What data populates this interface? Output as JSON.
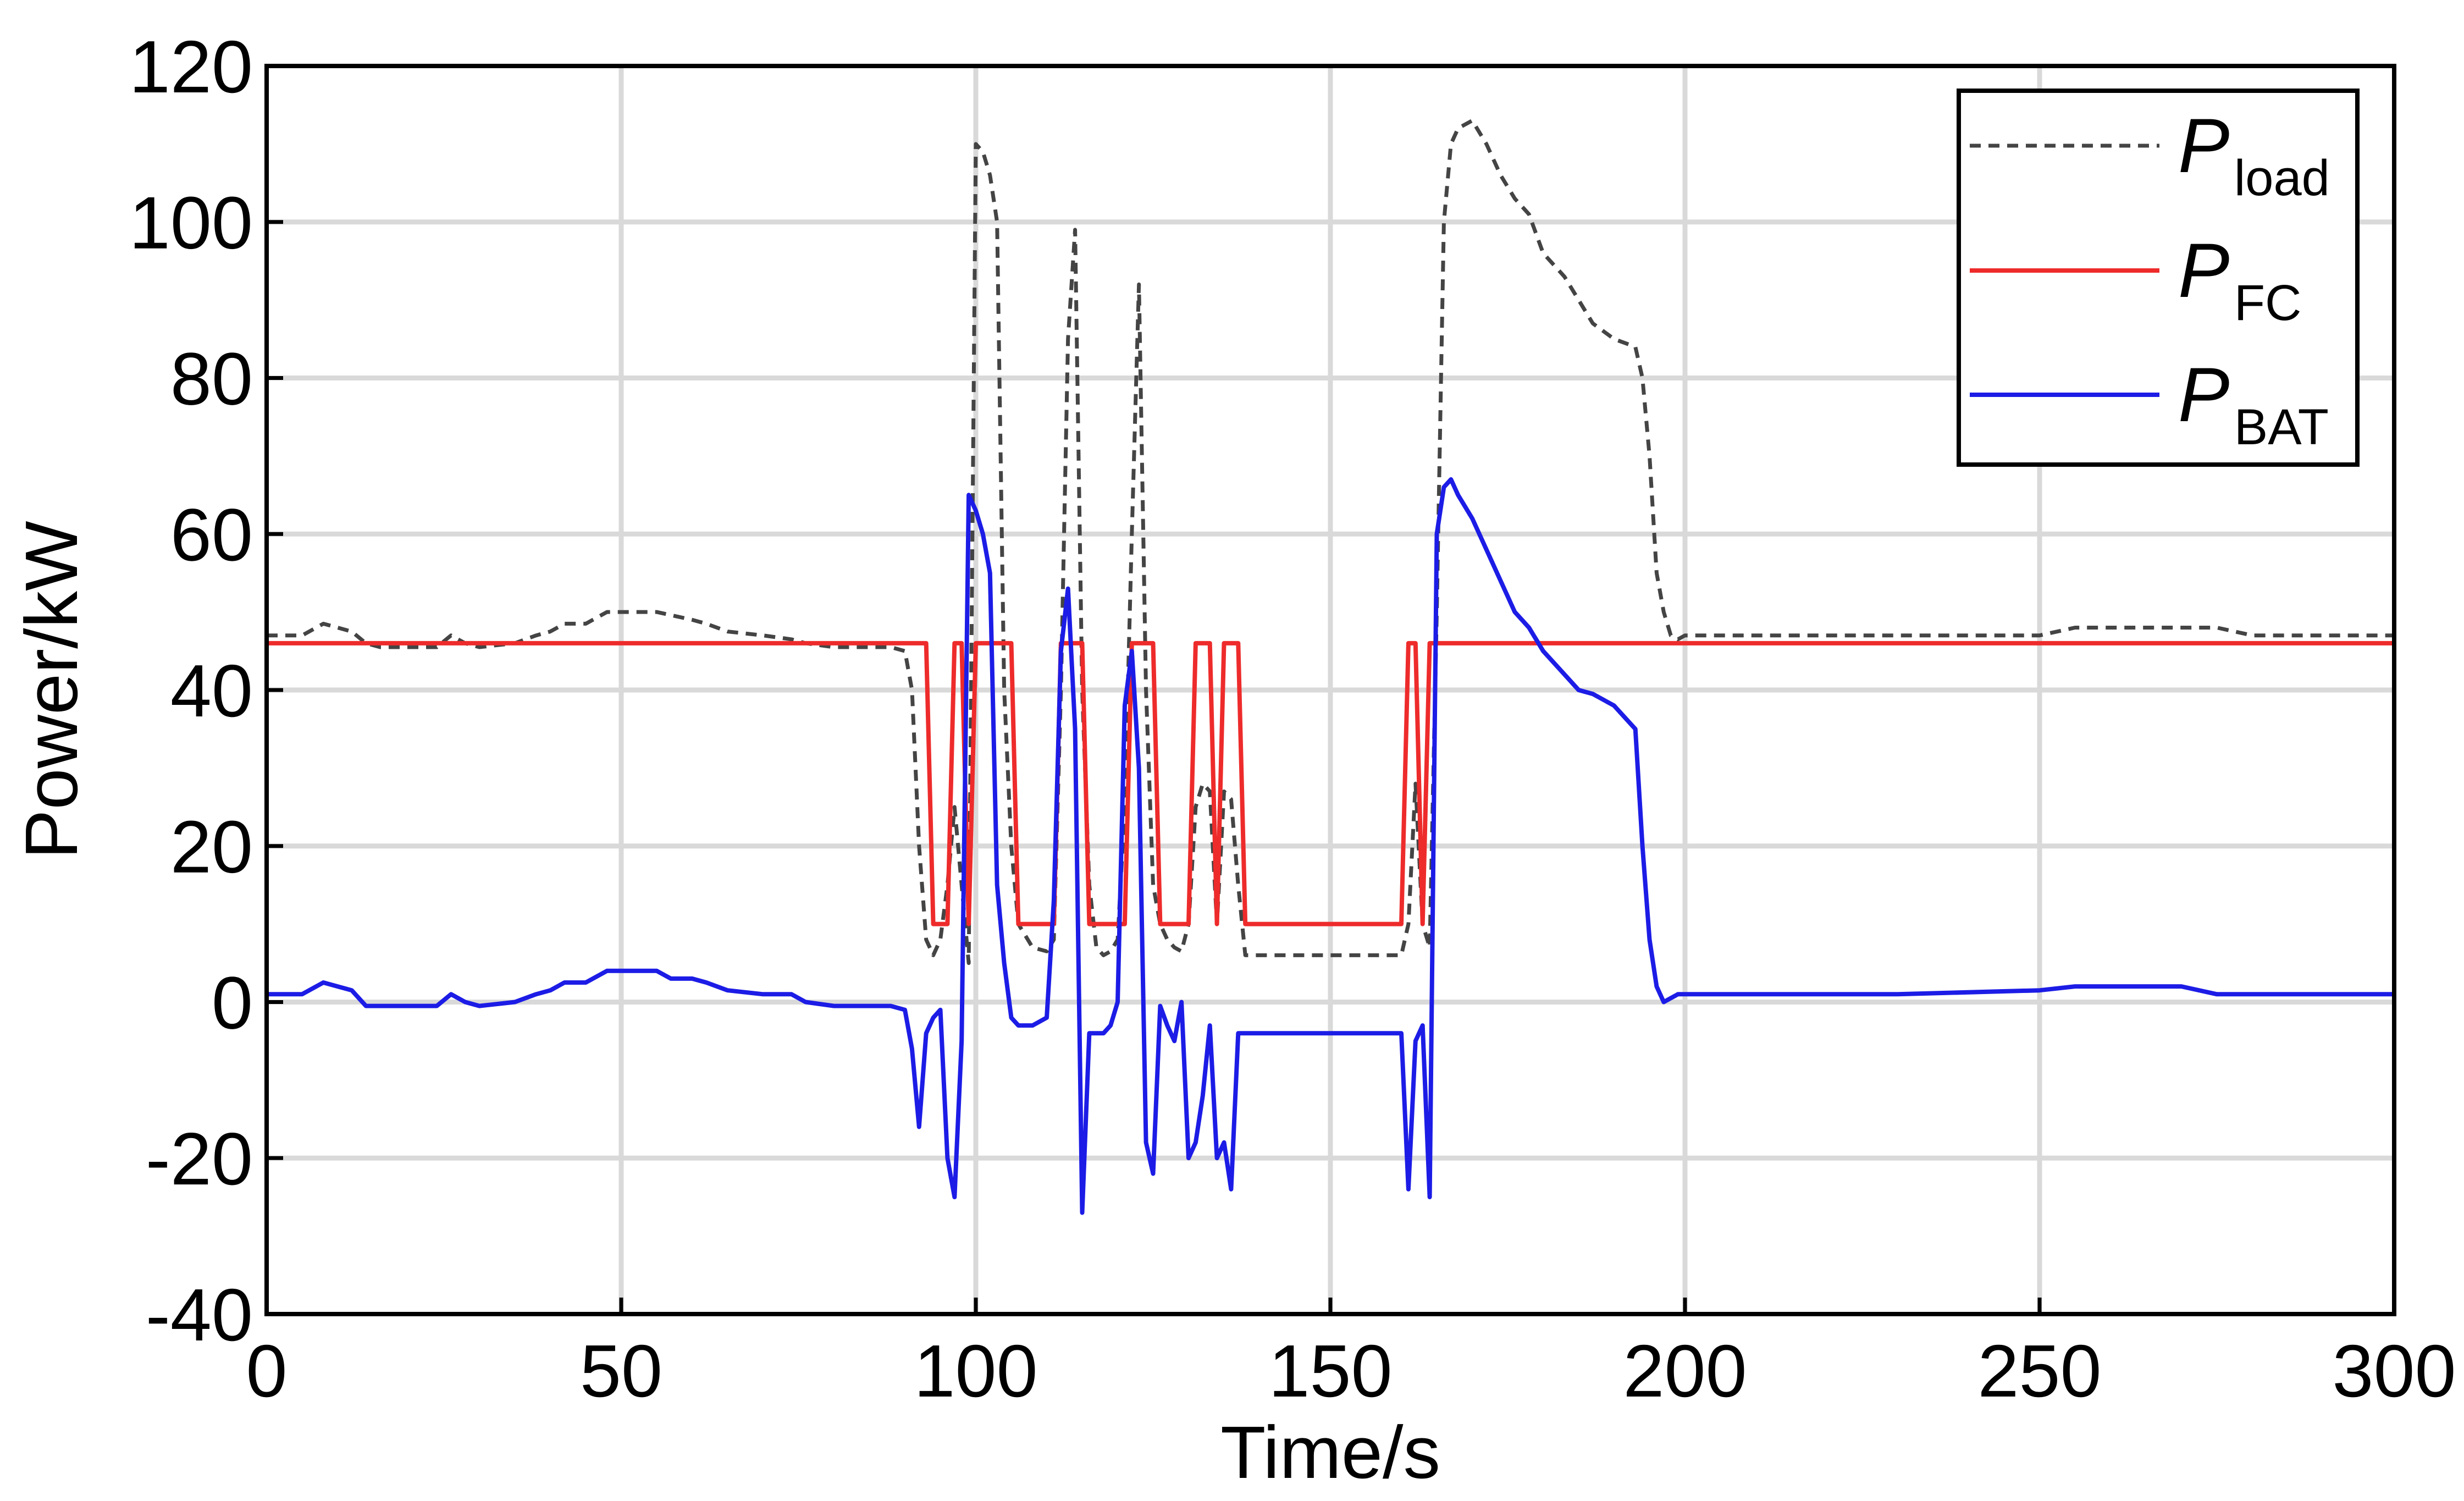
{
  "chart_data": {
    "type": "line",
    "title": "",
    "xlabel": "Time/s",
    "ylabel": "Power/kW",
    "xlim": [
      0,
      300
    ],
    "ylim": [
      -40,
      120
    ],
    "xticks": [
      0,
      50,
      100,
      150,
      200,
      250,
      300
    ],
    "yticks": [
      -40,
      -20,
      0,
      20,
      40,
      60,
      80,
      100,
      120
    ],
    "xtick_labels": [
      "0",
      "50",
      "100",
      "150",
      "200",
      "250",
      "300"
    ],
    "ytick_labels": [
      "-40",
      "-20",
      "0",
      "20",
      "40",
      "60",
      "80",
      "100",
      "120"
    ],
    "grid": true,
    "legend_position": "top-right",
    "series": [
      {
        "key": "load",
        "name": "P_load",
        "legend_main": "P",
        "legend_sub": "load",
        "color": "#444444",
        "style": "dashed",
        "x": [
          0,
          5,
          8,
          10,
          12,
          14,
          16,
          20,
          24,
          26,
          28,
          30,
          35,
          38,
          40,
          42,
          45,
          48,
          50,
          55,
          60,
          62,
          65,
          70,
          74,
          76,
          80,
          85,
          88,
          90,
          91,
          92,
          93,
          94,
          95,
          96,
          97,
          98,
          99,
          100,
          101,
          102,
          103,
          104,
          105,
          106,
          108,
          110,
          111,
          112,
          113,
          114,
          115,
          116,
          117,
          118,
          119,
          120,
          121,
          122,
          123,
          124,
          125,
          126,
          127,
          128,
          129,
          130,
          131,
          132,
          133,
          134,
          135,
          136,
          137,
          138,
          140,
          145,
          150,
          155,
          160,
          161,
          162,
          163,
          164,
          165,
          166,
          167,
          168,
          170,
          172,
          174,
          176,
          178,
          180,
          183,
          185,
          187,
          190,
          193,
          194,
          195,
          196,
          197,
          198,
          199,
          200,
          210,
          230,
          250,
          255,
          260,
          270,
          275,
          280,
          300
        ],
        "values": [
          47,
          47,
          48.5,
          48,
          47.5,
          46,
          45.5,
          45.5,
          45.5,
          47,
          46,
          45.5,
          46,
          47,
          47.5,
          48.5,
          48.5,
          50,
          50,
          50,
          49,
          48.5,
          47.5,
          47,
          46.5,
          46,
          45.5,
          45.5,
          45.5,
          45,
          40,
          20,
          8,
          6,
          8,
          15,
          25,
          15,
          5,
          110,
          109,
          106,
          100,
          40,
          20,
          10,
          7,
          6.5,
          8,
          40,
          85,
          99,
          40,
          15,
          7,
          6,
          6.5,
          8,
          25,
          60,
          92,
          40,
          15,
          10,
          8,
          7,
          6.5,
          10,
          25,
          28,
          27,
          10,
          27,
          26,
          15,
          6,
          6,
          6,
          6,
          6,
          6,
          10,
          28,
          10,
          7,
          50,
          100,
          110,
          112,
          113,
          110,
          106,
          103,
          101,
          96,
          93,
          90,
          87,
          85,
          84,
          80,
          70,
          55,
          50,
          47,
          46.5,
          47,
          47,
          47,
          47,
          48,
          48,
          48,
          48,
          47,
          47
        ]
      },
      {
        "key": "fc",
        "name": "P_FC",
        "legend_main": "P",
        "legend_sub": "FC",
        "color": "#ee2b2b",
        "style": "solid",
        "x": [
          0,
          93,
          94,
          95,
          96,
          97,
          98,
          99,
          100,
          101,
          105,
          106,
          110,
          111,
          112,
          113,
          114,
          115,
          116,
          117,
          120,
          121,
          122,
          123,
          124,
          125,
          126,
          127,
          129,
          130,
          131,
          132,
          133,
          134,
          135,
          136,
          137,
          138,
          140,
          150,
          160,
          161,
          162,
          163,
          164,
          165,
          170,
          200,
          250,
          300
        ],
        "values": [
          46,
          46,
          10,
          10,
          10,
          46,
          46,
          10,
          46,
          46,
          46,
          10,
          10,
          10,
          46,
          46,
          46,
          46,
          10,
          10,
          10,
          10,
          46,
          46,
          46,
          46,
          10,
          10,
          10,
          10,
          46,
          46,
          46,
          10,
          46,
          46,
          46,
          10,
          10,
          10,
          10,
          46,
          46,
          10,
          46,
          46,
          46,
          46,
          46,
          46
        ]
      },
      {
        "key": "bat",
        "name": "P_BAT",
        "legend_main": "P",
        "legend_sub": "BAT",
        "color": "#1c1ce6",
        "style": "solid",
        "x": [
          0,
          5,
          8,
          10,
          12,
          14,
          16,
          20,
          24,
          26,
          28,
          30,
          35,
          38,
          40,
          42,
          45,
          48,
          50,
          55,
          57,
          60,
          62,
          65,
          70,
          74,
          76,
          80,
          85,
          88,
          90,
          91,
          92,
          93,
          94,
          95,
          96,
          97,
          98,
          99,
          100,
          101,
          102,
          103,
          104,
          105,
          106,
          108,
          110,
          111,
          112,
          113,
          114,
          115,
          116,
          117,
          118,
          119,
          120,
          121,
          122,
          123,
          124,
          125,
          126,
          127,
          128,
          129,
          130,
          131,
          132,
          133,
          134,
          135,
          136,
          137,
          138,
          140,
          145,
          150,
          155,
          160,
          161,
          162,
          163,
          164,
          165,
          166,
          167,
          168,
          170,
          172,
          174,
          176,
          178,
          180,
          183,
          185,
          187,
          190,
          193,
          194,
          195,
          196,
          197,
          198,
          199,
          200,
          210,
          230,
          250,
          255,
          260,
          270,
          275,
          280,
          300
        ],
        "values": [
          1,
          1,
          2.5,
          2,
          1.5,
          -0.5,
          -0.5,
          -0.5,
          -0.5,
          1,
          0,
          -0.5,
          0,
          1,
          1.5,
          2.5,
          2.5,
          4,
          4,
          4,
          3,
          3,
          2.5,
          1.5,
          1,
          1,
          0,
          -0.5,
          -0.5,
          -0.5,
          -1,
          -6,
          -16,
          -4,
          -2,
          -1,
          -20,
          -25,
          -5,
          65,
          63,
          60,
          55,
          15,
          5,
          -2,
          -3,
          -3,
          -2,
          13,
          45,
          53,
          35,
          -27,
          -4,
          -4,
          -4,
          -3,
          0,
          38,
          45,
          30,
          -18,
          -22,
          -0.5,
          -3,
          -5,
          0,
          -20,
          -18,
          -12,
          -3,
          -20,
          -18,
          -24,
          -4,
          -4,
          -4,
          -4,
          -4,
          -4,
          -4,
          -24,
          -5,
          -3,
          -25,
          60,
          66,
          67,
          65,
          62,
          58,
          54,
          50,
          48,
          45,
          42,
          40,
          39.5,
          38,
          35,
          20,
          8,
          2,
          0,
          0.5,
          1,
          1,
          1,
          1,
          1.5,
          2,
          2,
          2,
          1,
          1,
          1
        ]
      }
    ]
  }
}
